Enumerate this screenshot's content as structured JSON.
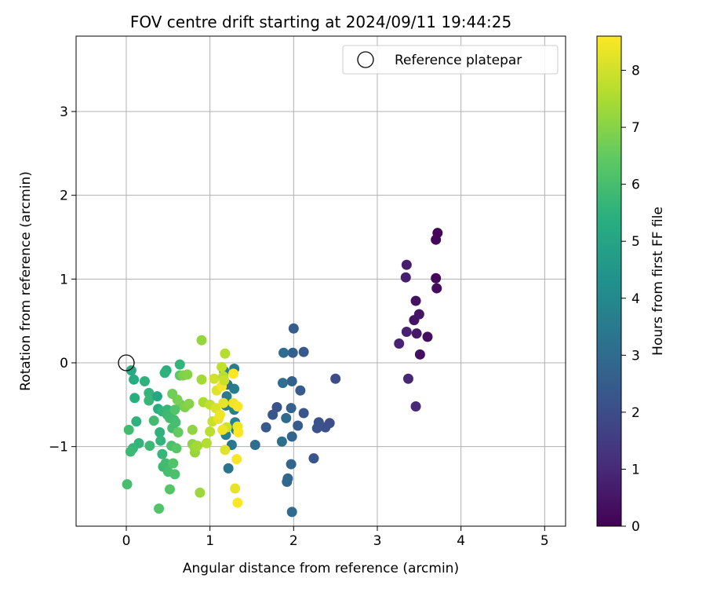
{
  "chart_data": {
    "type": "scatter",
    "title": "FOV centre drift starting at 2024/09/11 19:44:25",
    "xlabel": "Angular distance from reference (arcmin)",
    "ylabel": "Rotation from reference (arcmin)",
    "xlim": [
      -0.6,
      5.25
    ],
    "ylim": [
      -1.95,
      3.9
    ],
    "xticks": [
      "0",
      "1",
      "2",
      "3",
      "4",
      "5"
    ],
    "yticks": [
      "−1",
      "0",
      "1",
      "2",
      "3"
    ],
    "grid": true,
    "legend": {
      "position": "top-right",
      "entries": [
        "Reference platepar"
      ]
    },
    "reference_point": {
      "x": 0,
      "y": 0
    },
    "colorbar": {
      "label": "Hours from first FF file",
      "range": [
        0,
        8.6
      ],
      "ticks": [
        "0",
        "1",
        "2",
        "3",
        "4",
        "5",
        "6",
        "7",
        "8"
      ],
      "colormap": "viridis"
    },
    "points": [
      [
        3.72,
        1.55,
        0.1
      ],
      [
        3.7,
        1.47,
        0.15
      ],
      [
        3.7,
        1.01,
        0.2
      ],
      [
        3.71,
        0.89,
        0.25
      ],
      [
        3.6,
        0.31,
        0.3
      ],
      [
        3.51,
        0.1,
        0.35
      ],
      [
        3.46,
        0.74,
        0.4
      ],
      [
        3.44,
        0.51,
        0.45
      ],
      [
        3.5,
        0.58,
        0.5
      ],
      [
        3.47,
        0.35,
        0.55
      ],
      [
        3.35,
        1.17,
        0.7
      ],
      [
        3.34,
        1.02,
        0.75
      ],
      [
        3.35,
        0.37,
        0.8
      ],
      [
        3.26,
        0.23,
        0.85
      ],
      [
        3.37,
        -0.19,
        0.95
      ],
      [
        3.46,
        -0.52,
        1.0
      ],
      [
        2.5,
        -0.19,
        2.0
      ],
      [
        2.43,
        -0.72,
        2.05
      ],
      [
        2.38,
        -0.77,
        2.1
      ],
      [
        2.28,
        -0.78,
        2.15
      ],
      [
        2.3,
        -0.71,
        2.2
      ],
      [
        2.24,
        -1.14,
        2.25
      ],
      [
        2.12,
        -0.6,
        2.3
      ],
      [
        2.12,
        0.13,
        2.4
      ],
      [
        2.08,
        -0.33,
        2.45
      ],
      [
        2.05,
        -0.75,
        2.5
      ],
      [
        2.0,
        0.41,
        2.55
      ],
      [
        1.99,
        0.12,
        2.6
      ],
      [
        1.98,
        -0.22,
        2.65
      ],
      [
        1.97,
        -0.54,
        2.7
      ],
      [
        1.98,
        -0.88,
        2.75
      ],
      [
        1.97,
        -1.21,
        2.8
      ],
      [
        1.93,
        -1.38,
        2.85
      ],
      [
        1.92,
        -1.42,
        2.9
      ],
      [
        1.98,
        -1.78,
        2.95
      ],
      [
        1.91,
        -0.66,
        3.0
      ],
      [
        1.88,
        0.12,
        3.05
      ],
      [
        1.87,
        -0.24,
        3.1
      ],
      [
        1.86,
        -0.94,
        3.15
      ],
      [
        1.8,
        -0.53,
        2.2
      ],
      [
        1.75,
        -0.62,
        2.3
      ],
      [
        1.67,
        -0.77,
        2.4
      ],
      [
        1.54,
        -0.98,
        3.1
      ],
      [
        1.29,
        -0.07,
        3.5
      ],
      [
        1.29,
        -0.31,
        3.6
      ],
      [
        1.29,
        -0.56,
        3.7
      ],
      [
        1.3,
        -0.71,
        3.8
      ],
      [
        1.31,
        -0.8,
        3.9
      ],
      [
        1.26,
        -0.98,
        3.4
      ],
      [
        1.22,
        -1.26,
        3.3
      ],
      [
        1.21,
        -0.26,
        3.2
      ],
      [
        1.2,
        -0.4,
        3.5
      ],
      [
        1.19,
        -0.51,
        3.6
      ],
      [
        1.19,
        -0.86,
        3.7
      ],
      [
        1.17,
        -0.1,
        3.8
      ],
      [
        0.06,
        -0.09,
        5.2
      ],
      [
        0.09,
        -0.2,
        5.3
      ],
      [
        0.1,
        -0.42,
        5.4
      ],
      [
        0.12,
        -0.7,
        5.5
      ],
      [
        0.15,
        -0.96,
        5.6
      ],
      [
        0.08,
        -1.02,
        5.7
      ],
      [
        0.05,
        -1.06,
        5.8
      ],
      [
        0.03,
        -0.8,
        5.9
      ],
      [
        0.01,
        -1.45,
        6.0
      ],
      [
        0.22,
        -0.22,
        5.5
      ],
      [
        0.27,
        -0.36,
        5.6
      ],
      [
        0.27,
        -0.45,
        5.7
      ],
      [
        0.28,
        -0.99,
        5.8
      ],
      [
        0.33,
        -0.69,
        5.9
      ],
      [
        0.37,
        -0.4,
        5.1
      ],
      [
        0.38,
        -0.55,
        5.3
      ],
      [
        0.4,
        -0.83,
        5.5
      ],
      [
        0.41,
        -0.93,
        5.6
      ],
      [
        0.43,
        -1.09,
        5.7
      ],
      [
        0.44,
        -1.24,
        5.8
      ],
      [
        0.47,
        -1.2,
        5.9
      ],
      [
        0.5,
        -1.3,
        6.0
      ],
      [
        0.58,
        -1.33,
        6.1
      ],
      [
        0.39,
        -1.74,
        6.2
      ],
      [
        0.52,
        -1.51,
        6.3
      ],
      [
        0.48,
        -0.09,
        5.4
      ],
      [
        0.46,
        -0.12,
        5.5
      ],
      [
        0.43,
        -0.58,
        5.6
      ],
      [
        0.49,
        -0.56,
        5.7
      ],
      [
        0.49,
        -0.62,
        5.8
      ],
      [
        0.52,
        -0.66,
        5.9
      ],
      [
        0.55,
        -0.78,
        6.0
      ],
      [
        0.54,
        -0.99,
        6.1
      ],
      [
        0.56,
        -1.2,
        6.2
      ],
      [
        0.6,
        -1.02,
        6.3
      ],
      [
        0.64,
        -0.15,
        6.4
      ],
      [
        0.62,
        -0.83,
        6.5
      ],
      [
        0.65,
        -0.5,
        6.6
      ],
      [
        0.64,
        -0.02,
        5.6
      ],
      [
        0.58,
        -0.56,
        6.2
      ],
      [
        0.61,
        -0.44,
        6.8
      ],
      [
        0.55,
        -0.37,
        6.7
      ],
      [
        0.57,
        -0.68,
        5.9
      ],
      [
        0.59,
        -0.71,
        6.0
      ],
      [
        0.68,
        -0.15,
        6.9
      ],
      [
        0.73,
        -0.14,
        7.0
      ],
      [
        0.7,
        -0.53,
        6.9
      ],
      [
        0.75,
        -0.49,
        7.0
      ],
      [
        0.79,
        -0.97,
        7.1
      ],
      [
        0.79,
        -0.8,
        7.1
      ],
      [
        0.82,
        -1.07,
        7.2
      ],
      [
        0.82,
        -1.02,
        7.3
      ],
      [
        0.85,
        -0.99,
        7.4
      ],
      [
        0.88,
        -1.55,
        7.3
      ],
      [
        0.9,
        0.27,
        7.2
      ],
      [
        0.9,
        -0.2,
        7.4
      ],
      [
        0.92,
        -0.47,
        7.5
      ],
      [
        0.96,
        -0.96,
        7.6
      ],
      [
        1.0,
        -0.82,
        7.7
      ],
      [
        1.0,
        -0.5,
        7.8
      ],
      [
        1.03,
        -0.7,
        7.9
      ],
      [
        1.05,
        -0.19,
        8.0
      ],
      [
        1.07,
        -0.54,
        8.1
      ],
      [
        1.08,
        -0.33,
        8.2
      ],
      [
        1.1,
        -0.67,
        8.3
      ],
      [
        1.12,
        -0.62,
        8.4
      ],
      [
        1.14,
        -0.28,
        8.5
      ],
      [
        1.16,
        -0.48,
        8.3
      ],
      [
        1.18,
        0.11,
        7.6
      ],
      [
        1.16,
        -0.16,
        7.7
      ],
      [
        1.18,
        -1.04,
        8.2
      ],
      [
        1.2,
        -0.77,
        8.0
      ],
      [
        1.15,
        -0.8,
        8.4
      ],
      [
        1.14,
        -0.05,
        7.8
      ],
      [
        1.17,
        -0.21,
        7.9
      ],
      [
        1.28,
        -0.13,
        8.6
      ],
      [
        1.28,
        -0.48,
        8.4
      ],
      [
        1.33,
        -0.52,
        8.5
      ],
      [
        1.3,
        -1.5,
        8.3
      ],
      [
        1.33,
        -0.76,
        8.4
      ],
      [
        1.34,
        -0.83,
        8.6
      ],
      [
        1.32,
        -1.15,
        8.5
      ],
      [
        1.33,
        -1.67,
        8.6
      ]
    ]
  }
}
